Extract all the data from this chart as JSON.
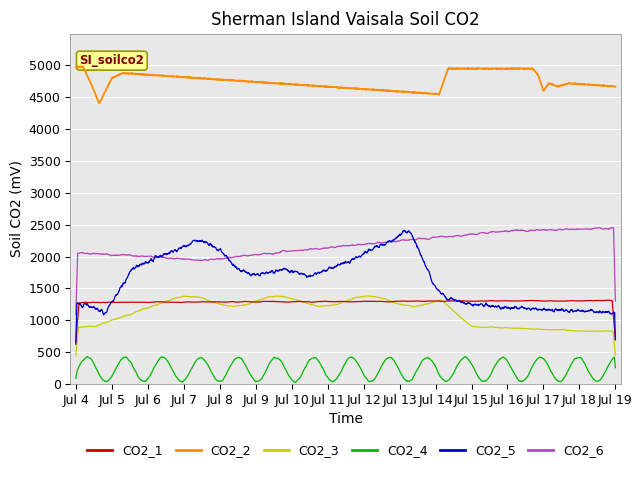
{
  "title": "Sherman Island Vaisala Soil CO2",
  "ylabel": "Soil CO2 (mV)",
  "xlabel": "Time",
  "annotation_label": "SI_soilco2",
  "xlim_days": [
    3.85,
    19.15
  ],
  "ylim": [
    0,
    5500
  ],
  "yticks": [
    0,
    500,
    1000,
    1500,
    2000,
    2500,
    3000,
    3500,
    4000,
    4500,
    5000
  ],
  "xtick_labels": [
    "Jul 4",
    "Jul 5",
    "Jul 6",
    "Jul 7",
    "Jul 8",
    "Jul 9",
    "Jul 10",
    "Jul 11",
    "Jul 12",
    "Jul 13",
    "Jul 14",
    "Jul 15",
    "Jul 16",
    "Jul 17",
    "Jul 18",
    "Jul 19"
  ],
  "xtick_positions": [
    4,
    5,
    6,
    7,
    8,
    9,
    10,
    11,
    12,
    13,
    14,
    15,
    16,
    17,
    18,
    19
  ],
  "background_color": "#e8e8e8",
  "plot_bgcolor": "#d8d8d8",
  "title_fontsize": 12,
  "tick_fontsize": 9,
  "axis_label_fontsize": 10,
  "line_colors": {
    "CO2_1": "#cc0000",
    "CO2_2": "#ff8c00",
    "CO2_3": "#cccc00",
    "CO2_4": "#00bb00",
    "CO2_5": "#0000cc",
    "CO2_6": "#bb44bb"
  },
  "annotation_box_facecolor": "#ffff99",
  "annotation_box_edgecolor": "#999900",
  "annotation_text_color": "#880000",
  "grid_color": "#ffffff",
  "legend_fontsize": 9
}
